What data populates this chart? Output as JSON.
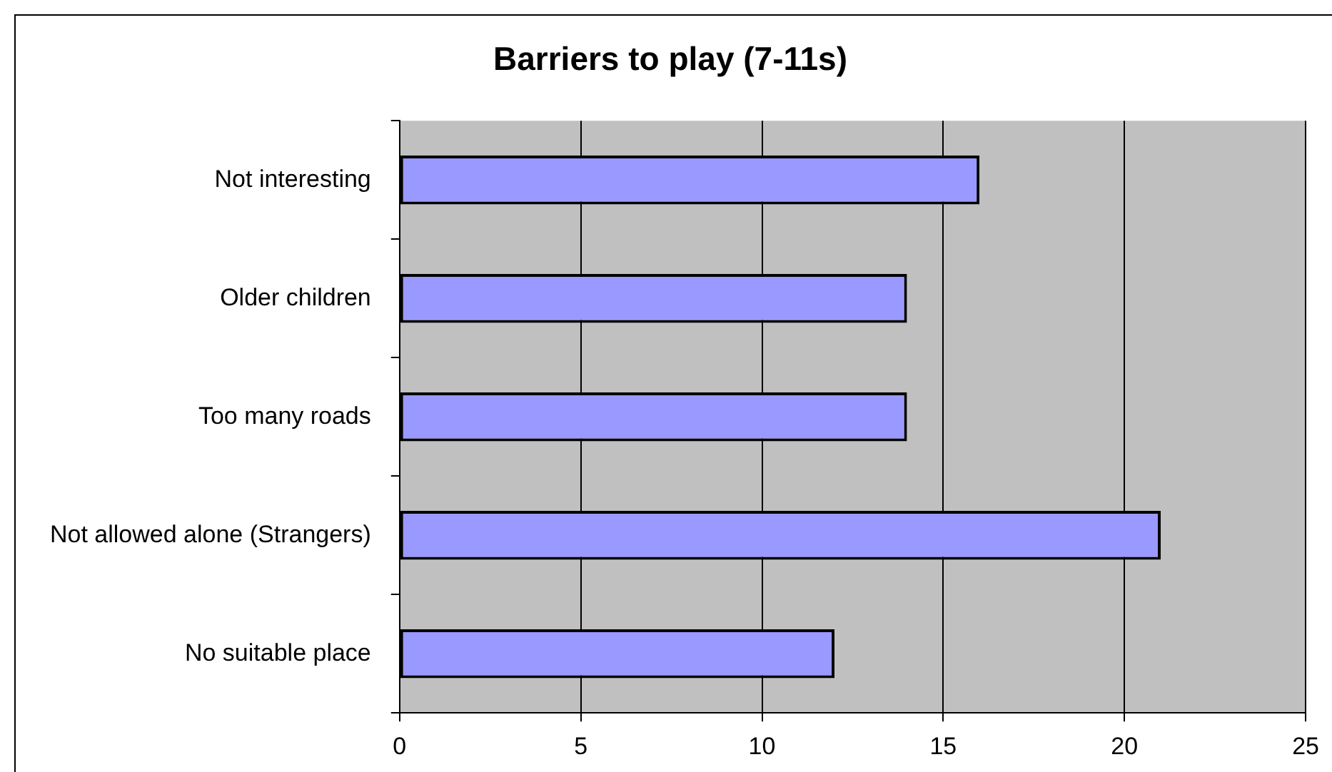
{
  "chart_data": {
    "type": "bar",
    "orientation": "horizontal",
    "title": "Barriers to play (7-11s)",
    "categories": [
      "Not interesting",
      "Older children",
      "Too many roads",
      "Not allowed alone (Strangers)",
      "No suitable place"
    ],
    "values": [
      16,
      14,
      14,
      21,
      12
    ],
    "color": "#9999ff",
    "xlim": [
      0,
      25
    ],
    "xticks": [
      0,
      5,
      10,
      15,
      20,
      25
    ],
    "grid": "x",
    "legend": false
  }
}
